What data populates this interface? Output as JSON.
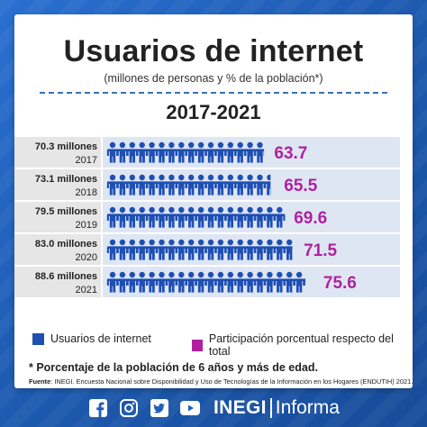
{
  "header": {
    "title": "Usuarios de internet",
    "subtitle": "(millones de personas y % de la población*)",
    "period": "2017-2021"
  },
  "colors": {
    "users": "#1f4fb3",
    "percent": "#b0219f",
    "background": "#1f5fb8",
    "row_band": "#dfe6f3"
  },
  "chart_data": {
    "type": "bar",
    "style": "pictogram",
    "categories": [
      "2017",
      "2018",
      "2019",
      "2020",
      "2021"
    ],
    "row_labels": [
      "70.3 millones",
      "73.1 millones",
      "79.5 millones",
      "83.0 millones",
      "88.6 millones"
    ],
    "series": [
      {
        "name": "Usuarios de internet",
        "unit": "millones de personas",
        "values": [
          70.3,
          73.1,
          79.5,
          83.0,
          88.6
        ]
      },
      {
        "name": "Participación porcentual respecto del total",
        "unit": "%",
        "values": [
          63.7,
          65.5,
          69.6,
          71.5,
          75.6
        ]
      }
    ],
    "value_labels": [
      "63.7",
      "65.5",
      "69.6",
      "71.5",
      "75.6"
    ]
  },
  "legend": {
    "users_label": "Usuarios de internet",
    "percent_label": "Participación porcentual respecto del total"
  },
  "footnote": "* Porcentaje de la población de 6 años y más de edad.",
  "source": {
    "label": "Fuente",
    "text": ": INEGI. Encuesta Nacional sobre Disponibilidad y Uso de Tecnologías de la Información en los Hogares (ENDUTIH) 2021."
  },
  "footer": {
    "social_icons": [
      "facebook-icon",
      "instagram-icon",
      "twitter-icon",
      "youtube-icon"
    ],
    "brand_bold": "INEGI",
    "brand_light": "Informa"
  }
}
